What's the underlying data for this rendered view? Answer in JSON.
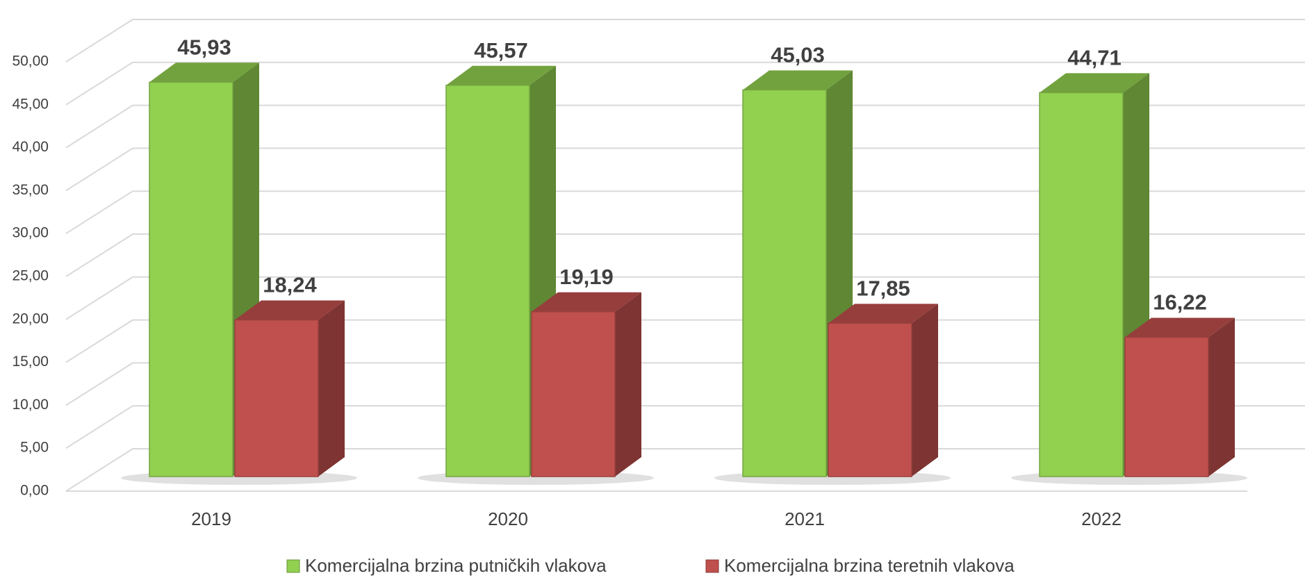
{
  "chart_data": {
    "type": "bar3d",
    "categories": [
      "2019",
      "2020",
      "2021",
      "2022"
    ],
    "series": [
      {
        "name": "Komercijalna brzina putničkih vlakova",
        "color": "#92d050",
        "values": [
          45.93,
          45.57,
          45.03,
          44.71
        ],
        "value_labels": [
          "45,93",
          "45,57",
          "45,03",
          "44,71"
        ]
      },
      {
        "name": "Komercijalna brzina teretnih vlakova",
        "color": "#c0504d",
        "values": [
          18.24,
          19.19,
          17.85,
          16.22
        ],
        "value_labels": [
          "18,24",
          "19,19",
          "17,85",
          "16,22"
        ]
      }
    ],
    "ylim": [
      0,
      50
    ],
    "yticks": [
      {
        "value": 0,
        "label": "0,00"
      },
      {
        "value": 5,
        "label": "5,00"
      },
      {
        "value": 10,
        "label": "10,00"
      },
      {
        "value": 15,
        "label": "15,00"
      },
      {
        "value": 20,
        "label": "20,00"
      },
      {
        "value": 25,
        "label": "25,00"
      },
      {
        "value": 30,
        "label": "30,00"
      },
      {
        "value": 35,
        "label": "35,00"
      },
      {
        "value": 40,
        "label": "40,00"
      },
      {
        "value": 45,
        "label": "45,00"
      },
      {
        "value": 50,
        "label": "50,00"
      }
    ],
    "grid": true,
    "legend": "bottom"
  }
}
